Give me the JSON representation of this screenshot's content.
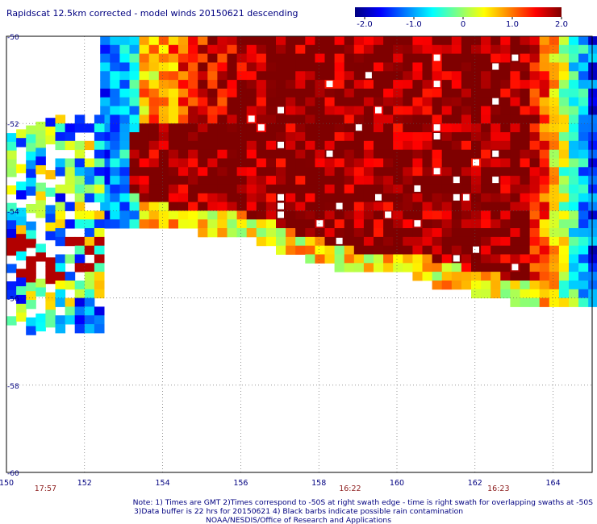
{
  "chart_data": {
    "type": "heatmap",
    "title": "Rapidscat 12.5km corrected - model winds 20150621 descending",
    "colorbar": {
      "ticks": [
        "-2.0",
        "-1.0",
        "0",
        "1.0",
        "2.0"
      ],
      "range": [
        -2.0,
        2.0
      ],
      "colors": [
        "#00007f",
        "#0000ff",
        "#0080ff",
        "#00ffff",
        "#80ff80",
        "#ffff00",
        "#ff8000",
        "#ff0000",
        "#7f0000"
      ]
    },
    "x_axis": {
      "range": [
        150,
        165
      ],
      "ticks": [
        "150",
        "152",
        "154",
        "156",
        "158",
        "160",
        "162",
        "164"
      ]
    },
    "y_axis": {
      "range": [
        -60,
        -50
      ],
      "ticks": [
        "-50",
        "-52",
        "-54",
        "-56",
        "-58",
        "-60"
      ]
    },
    "grid": "dotted",
    "swath_times": [
      {
        "label": "17:57",
        "lon": 151.0
      },
      {
        "label": "16:22",
        "lon": 158.8
      },
      {
        "label": "16:23",
        "lon": 162.6
      }
    ],
    "data_region": {
      "description_units": "longitude east / latitude",
      "lon_range": [
        152.4,
        165.0
      ],
      "lat_south_edge_by_lon": [
        [
          152.4,
          -54.2
        ],
        [
          154,
          -54.3
        ],
        [
          156,
          -54.5
        ],
        [
          158,
          -55.1
        ],
        [
          159,
          -55.4
        ],
        [
          160,
          -55.3
        ],
        [
          161,
          -55.6
        ],
        [
          162,
          -55.8
        ],
        [
          163,
          -56.0
        ],
        [
          164,
          -56.2
        ],
        [
          165,
          -56.2
        ]
      ],
      "west_fragment": {
        "lon_range": [
          150.0,
          152.4
        ],
        "lat_range": [
          -56.7,
          -51.8
        ]
      }
    }
  },
  "footer": {
    "line1": "Note: 1) Times are GMT 2)Times correspond to -50S at right swath edge - time is right swath for overlapping swaths at -50S",
    "line2": "3)Data buffer is 22 hrs for 20150621 4) Black barbs indicate possible rain contamination",
    "line3": "NOAA/NESDIS/Office of Research and Applications"
  }
}
